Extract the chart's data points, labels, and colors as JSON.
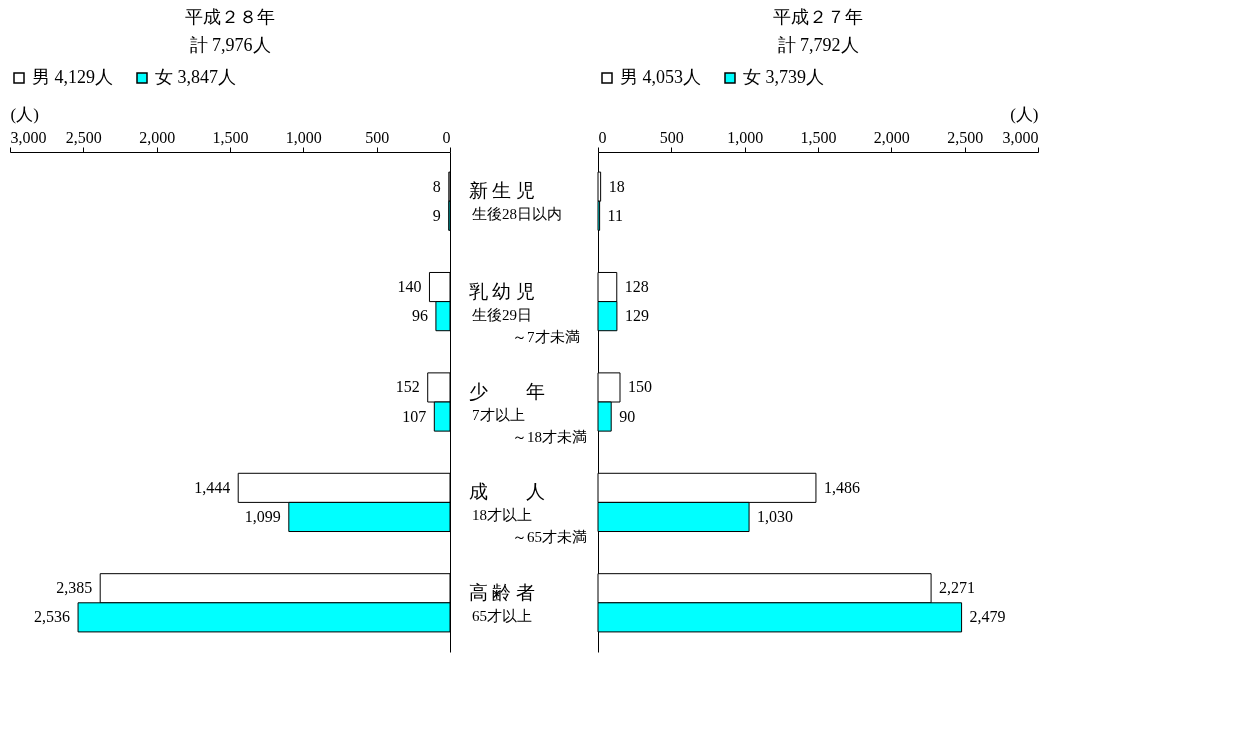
{
  "chart_data": [
    {
      "type": "bar",
      "orientation": "horizontal",
      "title": "平成２８年",
      "xlabel": "(人)",
      "annotations": [
        "計 7,976人",
        "生後28日以内",
        "生後29日",
        "～7才未満",
        "7才以上",
        "～18才未満",
        "18才以上",
        "～65才未満",
        "65才以上"
      ],
      "categories": [
        "新 生 児",
        "乳 幼 児",
        "少　　年",
        "成　　人",
        "高 齢 者"
      ],
      "series": [
        {
          "name": "男 4,129人",
          "color": "#ffffff",
          "values": [
            8,
            140,
            152,
            1444,
            2385
          ],
          "value_labels": [
            "8",
            "140",
            "152",
            "1,444",
            "2,385"
          ]
        },
        {
          "name": "女 3,847人",
          "color": "#00ffff",
          "values": [
            9,
            96,
            107,
            1099,
            2536
          ],
          "value_labels": [
            "9",
            "96",
            "107",
            "1,099",
            "2,536"
          ]
        }
      ],
      "xlim": [
        3000,
        0
      ],
      "xticks": [
        {
          "value": 3000,
          "label": "3,000"
        },
        {
          "value": 2500,
          "label": "2,500"
        },
        {
          "value": 2000,
          "label": "2,000"
        },
        {
          "value": 1500,
          "label": "1,500"
        },
        {
          "value": 1000,
          "label": "1,000"
        },
        {
          "value": 500,
          "label": "500"
        },
        {
          "value": 0,
          "label": "0"
        }
      ],
      "legend": "top"
    },
    {
      "type": "bar",
      "orientation": "horizontal",
      "title": "平成２７年",
      "xlabel": "(人)",
      "annotations": [
        "計 7,792人"
      ],
      "categories": [
        null,
        null,
        null,
        null,
        null
      ],
      "series": [
        {
          "name": "男 4,053人",
          "color": "#ffffff",
          "values": [
            18,
            128,
            150,
            1486,
            2271
          ],
          "value_labels": [
            "18",
            "128",
            "150",
            "1,486",
            "2,271"
          ]
        },
        {
          "name": "女 3,739人",
          "color": "#00ffff",
          "values": [
            11,
            129,
            90,
            1030,
            2479
          ],
          "value_labels": [
            "11",
            "129",
            "90",
            "1,030",
            "2,479"
          ]
        }
      ],
      "xlim": [
        0,
        3000
      ],
      "xticks": [
        {
          "value": 0,
          "label": "0"
        },
        {
          "value": 500,
          "label": "500"
        },
        {
          "value": 1000,
          "label": "1,000"
        },
        {
          "value": 1500,
          "label": "1,500"
        },
        {
          "value": 2000,
          "label": "2,000"
        },
        {
          "value": 2500,
          "label": "2,500"
        },
        {
          "value": 3000,
          "label": "3,000"
        }
      ],
      "legend": "top",
      "tick_labels": "x"
    }
  ]
}
